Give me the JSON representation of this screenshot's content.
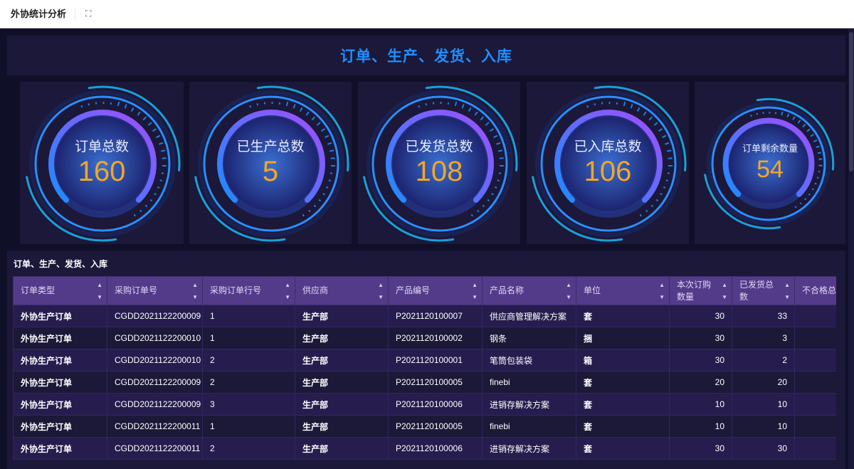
{
  "header": {
    "title": "外协统计分析",
    "fullscreen_icon": "expand-icon"
  },
  "banner": {
    "title": "订单、生产、发货、入库"
  },
  "gauges": [
    {
      "label": "订单总数",
      "value": "160"
    },
    {
      "label": "已生产总数",
      "value": "5"
    },
    {
      "label": "已发货总数",
      "value": "108"
    },
    {
      "label": "已入库总数",
      "value": "106"
    },
    {
      "label": "订单剩余数量",
      "value": "54"
    }
  ],
  "colors": {
    "accent": "#1f8fff",
    "value": "#f5a623",
    "header": "#533b8a",
    "panel": "#1b1839"
  },
  "table": {
    "title": "订单、生产、发货、入库",
    "columns": [
      "订单类型",
      "采购订单号",
      "采购订单行号",
      "供应商",
      "产品编号",
      "产品名称",
      "单位",
      "本次订购数量",
      "已发货总数",
      "不合格总数"
    ],
    "rows": [
      [
        "外协生产订单",
        "CGDD2021122200009",
        "1",
        "生产部",
        "P2021120100007",
        "供应商管理解决方案",
        "套",
        "30",
        "33",
        ""
      ],
      [
        "外协生产订单",
        "CGDD2021122200010",
        "1",
        "生产部",
        "P2021120100002",
        "钢条",
        "捆",
        "30",
        "3",
        ""
      ],
      [
        "外协生产订单",
        "CGDD2021122200010",
        "2",
        "生产部",
        "P2021120100001",
        "笔筒包装袋",
        "箱",
        "30",
        "2",
        ""
      ],
      [
        "外协生产订单",
        "CGDD2021122200009",
        "2",
        "生产部",
        "P2021120100005",
        "finebi",
        "套",
        "20",
        "20",
        ""
      ],
      [
        "外协生产订单",
        "CGDD2021122200009",
        "3",
        "生产部",
        "P2021120100006",
        "进销存解决方案",
        "套",
        "10",
        "10",
        ""
      ],
      [
        "外协生产订单",
        "CGDD2021122200011",
        "1",
        "生产部",
        "P2021120100005",
        "finebi",
        "套",
        "10",
        "10",
        ""
      ],
      [
        "外协生产订单",
        "CGDD2021122200011",
        "2",
        "生产部",
        "P2021120100006",
        "进销存解决方案",
        "套",
        "30",
        "30",
        ""
      ]
    ]
  }
}
